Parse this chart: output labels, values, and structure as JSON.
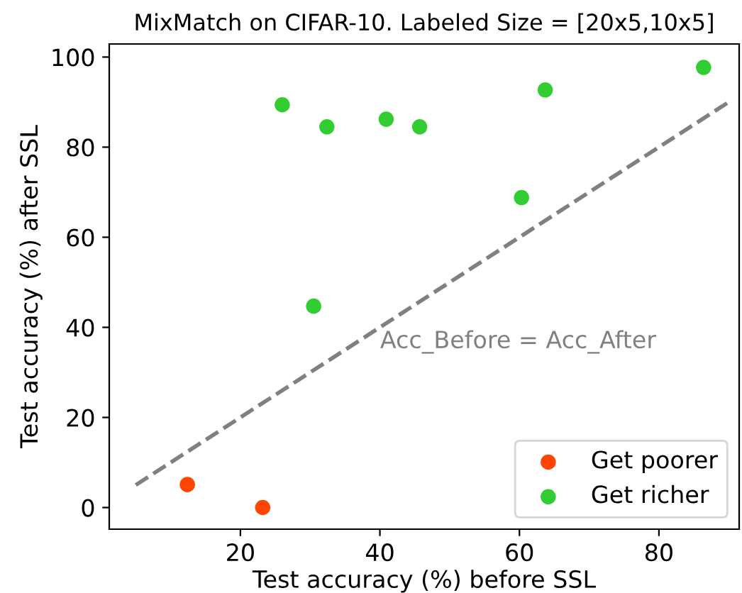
{
  "chart_data": {
    "type": "scatter",
    "title": "MixMatch on CIFAR-10. Labeled Size = [20x5,10x5]",
    "xlabel": "Test accuracy (%) before SSL",
    "ylabel": "Test accuracy (%) after SSL",
    "series": [
      {
        "name": "Get poorer",
        "color": "#ff4500",
        "x": [
          12.4,
          23.2
        ],
        "values": [
          5.1,
          0
        ]
      },
      {
        "name": "Get richer",
        "color": "#32cd32",
        "x": [
          26.0,
          32.4,
          40.9,
          45.7,
          63.7,
          86.4,
          60.3,
          30.5
        ],
        "values": [
          89.4,
          84.5,
          86.2,
          84.5,
          92.7,
          97.7,
          68.8,
          44.7
        ]
      },
      {
        "type": "line",
        "color": "#808080",
        "line_style": "dashed",
        "marker": "none",
        "x": [
          5,
          90
        ],
        "values": [
          5,
          90
        ]
      }
    ],
    "annotations": [
      "Acc_Before = Acc_After"
    ],
    "xlim": [
      1.2,
      91.5
    ],
    "ylim": [
      -4.8,
      102.9
    ],
    "xticks": [
      20,
      40,
      60,
      80
    ],
    "yticks": [
      0,
      20,
      40,
      60,
      80,
      100
    ],
    "marker": "circle",
    "legend": "bottom right",
    "grid": false
  }
}
